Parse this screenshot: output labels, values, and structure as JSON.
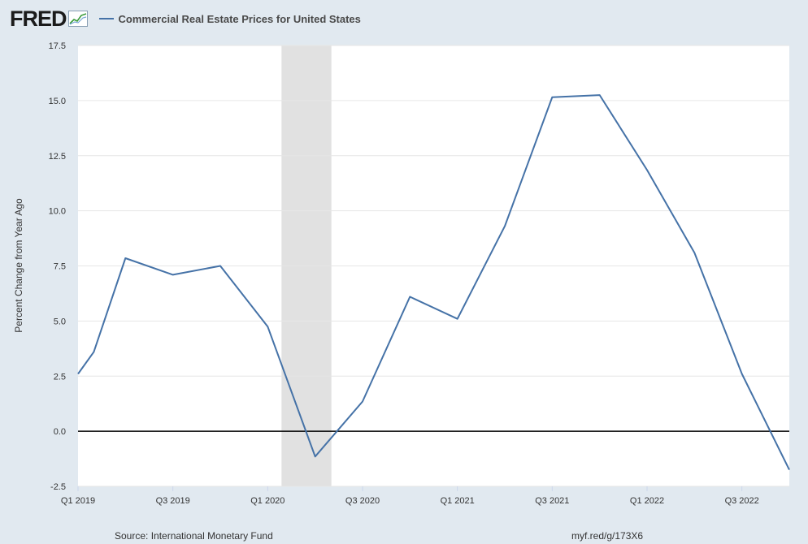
{
  "header": {
    "logo_text": "FRED",
    "legend_label": "Commercial Real Estate Prices for United States"
  },
  "footer": {
    "source": "Source: International Monetary Fund",
    "url": "myf.red/g/173X6"
  },
  "colors": {
    "series": "#4572a7",
    "recession": "#e1e1e1",
    "background": "#e1e9f0",
    "plot": "#ffffff",
    "zero_line": "#000000"
  },
  "chart_data": {
    "type": "line",
    "title": "",
    "xlabel": "",
    "ylabel": "Percent Change from Year Ago",
    "ylim": [
      -2.5,
      17.5
    ],
    "yticks": [
      "17.5",
      "15.0",
      "12.5",
      "10.0",
      "7.5",
      "5.0",
      "2.5",
      "0.0",
      "-2.5"
    ],
    "xlim": [
      "Q1 2019",
      "Q4 2022"
    ],
    "xtick_labels": [
      "Q1 2019",
      "Q3 2019",
      "Q1 2020",
      "Q3 2020",
      "Q1 2021",
      "Q3 2021",
      "Q1 2022",
      "Q3 2022"
    ],
    "grid": true,
    "series": [
      {
        "name": "Commercial Real Estate Prices for United States",
        "x": [
          "Q1 2019",
          "Q2 2019",
          "Q3 2019",
          "Q4 2019",
          "Q1 2020",
          "Q2 2020",
          "Q3 2020",
          "Q4 2020",
          "Q1 2021",
          "Q2 2021",
          "Q3 2021",
          "Q4 2021",
          "Q1 2022",
          "Q2 2022",
          "Q3 2022",
          "Q4 2022"
        ],
        "values": [
          2.6,
          7.85,
          7.1,
          7.5,
          4.75,
          -1.15,
          1.35,
          6.1,
          5.1,
          9.3,
          15.15,
          15.25,
          11.85,
          8.1,
          2.6,
          -1.75
        ]
      }
    ],
    "extra_points": [
      {
        "x": "2019-02",
        "value": 3.6
      }
    ],
    "recession_shading": {
      "start": "Q1 2020",
      "end": "Q2 2020"
    }
  }
}
